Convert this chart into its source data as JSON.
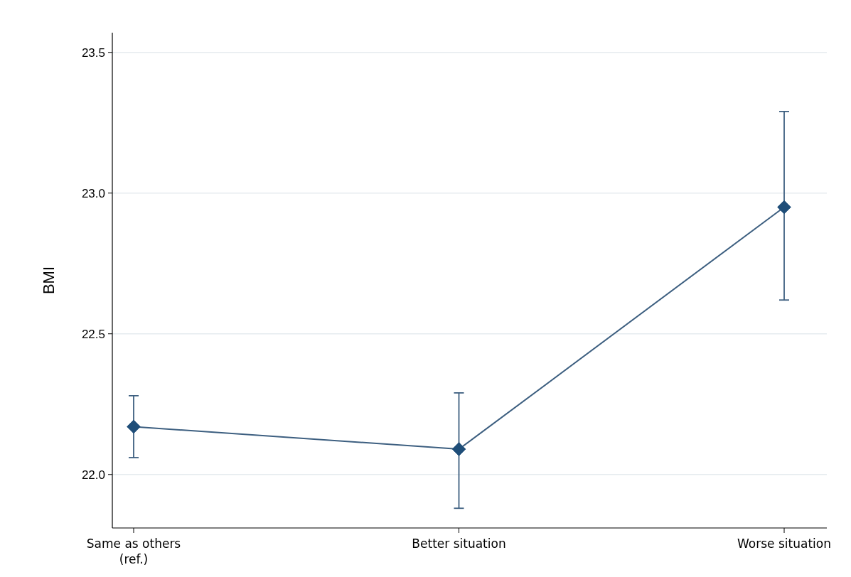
{
  "chart_data": {
    "type": "line",
    "ylabel": "BMI",
    "categories": [
      "Same as others (ref.)",
      "Better situation",
      "Worse situation"
    ],
    "series": [
      {
        "color": "#3d5f80",
        "values": [
          22.17,
          22.09,
          22.95
        ],
        "errors": [
          [
            22.06,
            22.28
          ],
          [
            21.88,
            22.29
          ],
          [
            22.62,
            23.29
          ]
        ]
      }
    ],
    "ylim": [
      21.81,
      23.57
    ],
    "yticks": [
      {
        "value": 22,
        "label": "22.0"
      },
      {
        "value": 22.5,
        "label": "22.5"
      },
      {
        "value": 23,
        "label": "23.0"
      },
      {
        "value": 23.5,
        "label": "23.5"
      }
    ],
    "grid": "y",
    "marker": "diamond",
    "line_style": "solid"
  }
}
